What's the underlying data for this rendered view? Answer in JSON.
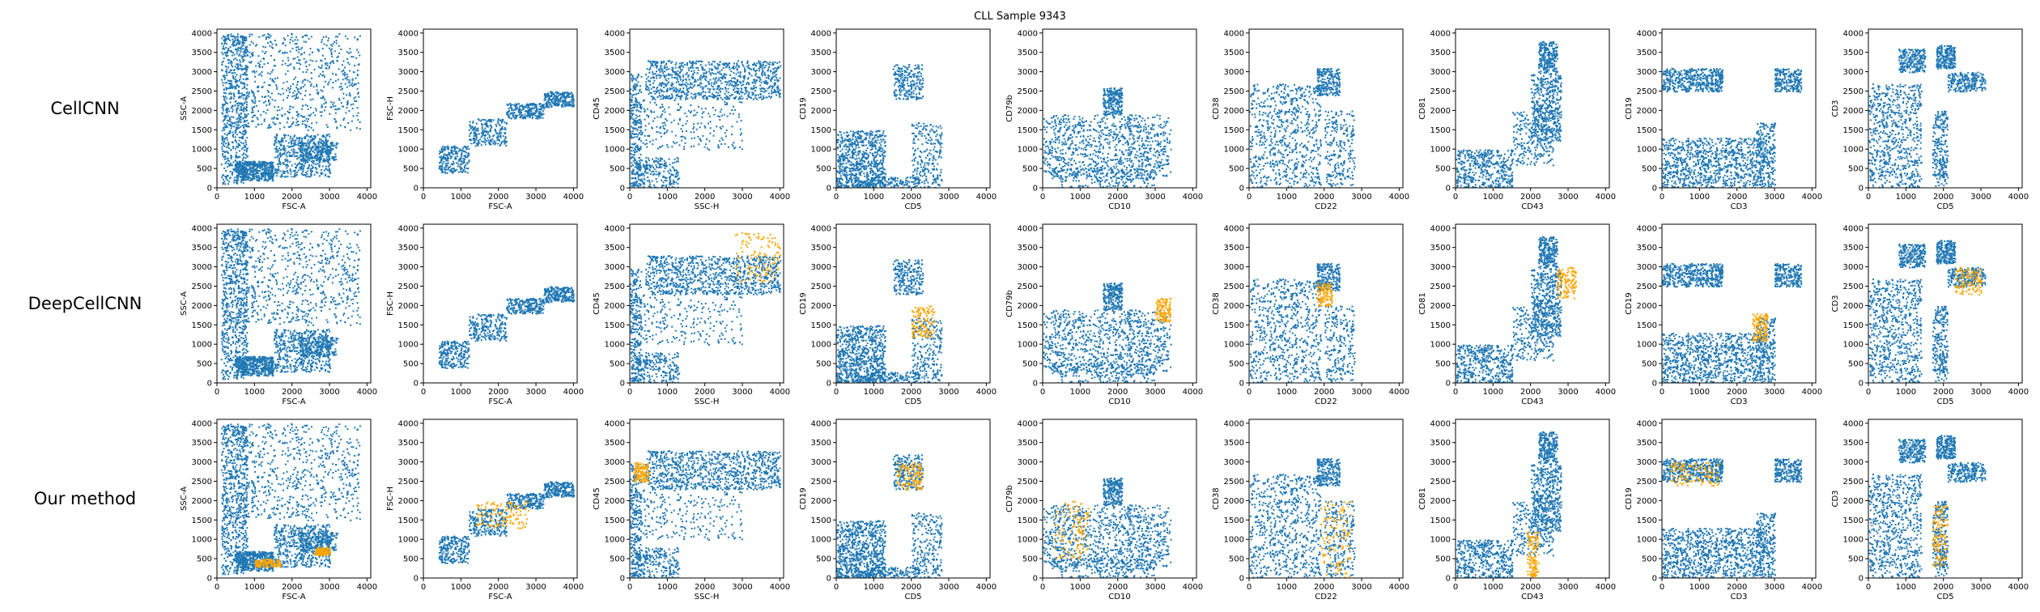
{
  "figure": {
    "title": "CLL Sample 9343",
    "row_labels": [
      "CellCNN",
      "DeepCellCNN",
      "Our method"
    ]
  },
  "colors": {
    "base_points": "#1f77b4",
    "highlight_points": "#ffa500",
    "axes": "#000000"
  },
  "chart_data": {
    "type": "scatter",
    "title": "CLL Sample 9343",
    "rows": [
      "CellCNN",
      "DeepCellCNN",
      "Our method"
    ],
    "panels": [
      {
        "xlabel": "FSC-A",
        "ylabel": "SSC-A",
        "xlim": [
          0,
          4100
        ],
        "ylim": [
          0,
          4100
        ]
      },
      {
        "xlabel": "FSC-A",
        "ylabel": "FSC-H",
        "xlim": [
          0,
          4100
        ],
        "ylim": [
          0,
          4100
        ]
      },
      {
        "xlabel": "SSC-H",
        "ylabel": "CD45",
        "xlim": [
          0,
          4100
        ],
        "ylim": [
          0,
          4100
        ]
      },
      {
        "xlabel": "CD5",
        "ylabel": "CD19",
        "xlim": [
          0,
          4100
        ],
        "ylim": [
          0,
          4100
        ]
      },
      {
        "xlabel": "CD10",
        "ylabel": "CD79b",
        "xlim": [
          0,
          4100
        ],
        "ylim": [
          0,
          4100
        ]
      },
      {
        "xlabel": "CD22",
        "ylabel": "CD38",
        "xlim": [
          0,
          4100
        ],
        "ylim": [
          0,
          4100
        ]
      },
      {
        "xlabel": "CD43",
        "ylabel": "CD81",
        "xlim": [
          0,
          4100
        ],
        "ylim": [
          0,
          4100
        ]
      },
      {
        "xlabel": "CD3",
        "ylabel": "CD19",
        "xlim": [
          0,
          4100
        ],
        "ylim": [
          0,
          4100
        ]
      },
      {
        "xlabel": "CD5",
        "ylabel": "CD3",
        "xlim": [
          0,
          4100
        ],
        "ylim": [
          0,
          4100
        ]
      }
    ],
    "xticks": [
      0,
      1000,
      2000,
      3000,
      4000
    ],
    "yticks": [
      0,
      500,
      1000,
      1500,
      2000,
      2500,
      3000,
      3500,
      4000
    ],
    "clusters": [
      [
        {
          "x": [
            100,
            800
          ],
          "y": [
            100,
            4000
          ],
          "w": 3
        },
        {
          "x": [
            500,
            3800
          ],
          "y": [
            1500,
            4000
          ],
          "w": 3
        },
        {
          "x": [
            1500,
            3000
          ],
          "y": [
            300,
            1400
          ],
          "w": 2
        },
        {
          "x": [
            500,
            1500
          ],
          "y": [
            200,
            700
          ],
          "w": 2
        },
        {
          "x": [
            2200,
            3200
          ],
          "y": [
            700,
            1200
          ],
          "w": 1
        }
      ],
      [
        {
          "x": [
            400,
            1200
          ],
          "y": [
            400,
            1100
          ],
          "w": 1
        },
        {
          "x": [
            1200,
            2200
          ],
          "y": [
            1100,
            1800
          ],
          "w": 1
        },
        {
          "x": [
            2200,
            3200
          ],
          "y": [
            1800,
            2200
          ],
          "w": 1
        },
        {
          "x": [
            3200,
            4000
          ],
          "y": [
            2100,
            2500
          ],
          "w": 1
        }
      ],
      [
        {
          "x": [
            400,
            4000
          ],
          "y": [
            2300,
            3300
          ],
          "w": 4
        },
        {
          "x": [
            0,
            1300
          ],
          "y": [
            0,
            800
          ],
          "w": 1
        },
        {
          "x": [
            100,
            3000
          ],
          "y": [
            1000,
            2300
          ],
          "w": 1
        },
        {
          "x": [
            0,
            300
          ],
          "y": [
            0,
            3000
          ],
          "w": 1
        }
      ],
      [
        {
          "x": [
            0,
            1300
          ],
          "y": [
            0,
            1500
          ],
          "w": 3
        },
        {
          "x": [
            1500,
            2300
          ],
          "y": [
            2300,
            3200
          ],
          "w": 1
        },
        {
          "x": [
            2000,
            2800
          ],
          "y": [
            0,
            1700
          ],
          "w": 1
        },
        {
          "x": [
            0,
            2200
          ],
          "y": [
            0,
            300
          ],
          "w": 1
        }
      ],
      [
        {
          "x": [
            0,
            3400
          ],
          "y": [
            300,
            1900
          ],
          "w": 4
        },
        {
          "x": [
            200,
            3000
          ],
          "y": [
            0,
            500
          ],
          "w": 1
        },
        {
          "x": [
            1600,
            2100
          ],
          "y": [
            1900,
            2600
          ],
          "w": 1
        }
      ],
      [
        {
          "x": [
            0,
            1900
          ],
          "y": [
            0,
            2700
          ],
          "w": 3
        },
        {
          "x": [
            2000,
            2800
          ],
          "y": [
            0,
            2000
          ],
          "w": 1
        },
        {
          "x": [
            1800,
            2400
          ],
          "y": [
            2400,
            3100
          ],
          "w": 1
        }
      ],
      [
        {
          "x": [
            0,
            1500
          ],
          "y": [
            0,
            1000
          ],
          "w": 2
        },
        {
          "x": [
            1500,
            2600
          ],
          "y": [
            600,
            2000
          ],
          "w": 1
        },
        {
          "x": [
            2000,
            2800
          ],
          "y": [
            1200,
            3000
          ],
          "w": 2
        },
        {
          "x": [
            2200,
            2700
          ],
          "y": [
            3000,
            3800
          ],
          "w": 1
        }
      ],
      [
        {
          "x": [
            0,
            2700
          ],
          "y": [
            0,
            1300
          ],
          "w": 4
        },
        {
          "x": [
            0,
            1600
          ],
          "y": [
            2500,
            3100
          ],
          "w": 2
        },
        {
          "x": [
            2500,
            3000
          ],
          "y": [
            0,
            1700
          ],
          "w": 1
        },
        {
          "x": [
            3000,
            3700
          ],
          "y": [
            2500,
            3100
          ],
          "w": 1
        }
      ],
      [
        {
          "x": [
            0,
            1400
          ],
          "y": [
            0,
            2700
          ],
          "w": 3
        },
        {
          "x": [
            1700,
            2100
          ],
          "y": [
            0,
            2000
          ],
          "w": 1
        },
        {
          "x": [
            2100,
            3100
          ],
          "y": [
            2500,
            3000
          ],
          "w": 1
        },
        {
          "x": [
            1800,
            2300
          ],
          "y": [
            3100,
            3700
          ],
          "w": 1
        },
        {
          "x": [
            800,
            1500
          ],
          "y": [
            3000,
            3600
          ],
          "w": 1
        }
      ]
    ],
    "highlights": [
      [
        [],
        [],
        [],
        [],
        [],
        [],
        [],
        [],
        []
      ],
      [
        [],
        [],
        [
          {
            "x": [
              2800,
              4000
            ],
            "y": [
              2600,
              3900
            ]
          }
        ],
        [
          {
            "x": [
              2000,
              2600
            ],
            "y": [
              1200,
              2000
            ]
          }
        ],
        [
          {
            "x": [
              3000,
              3400
            ],
            "y": [
              1600,
              2200
            ]
          }
        ],
        [
          {
            "x": [
              1800,
              2200
            ],
            "y": [
              2000,
              2600
            ]
          }
        ],
        [
          {
            "x": [
              2700,
              3200
            ],
            "y": [
              2200,
              3000
            ]
          }
        ],
        [
          {
            "x": [
              2400,
              2800
            ],
            "y": [
              1100,
              1800
            ]
          }
        ],
        [
          {
            "x": [
              2300,
              3000
            ],
            "y": [
              2300,
              3000
            ]
          }
        ]
      ],
      [
        [
          {
            "x": [
              1000,
              1700
            ],
            "y": [
              300,
              500
            ]
          },
          {
            "x": [
              2600,
              3000
            ],
            "y": [
              600,
              800
            ]
          }
        ],
        [
          {
            "x": [
              1400,
              2800
            ],
            "y": [
              1300,
              2000
            ]
          }
        ],
        [
          {
            "x": [
              100,
              500
            ],
            "y": [
              2500,
              3000
            ]
          }
        ],
        [
          {
            "x": [
              1600,
              2300
            ],
            "y": [
              2300,
              3000
            ]
          }
        ],
        [
          {
            "x": [
              300,
              1200
            ],
            "y": [
              500,
              2000
            ]
          }
        ],
        [
          {
            "x": [
              1900,
              2700
            ],
            "y": [
              0,
              2000
            ]
          }
        ],
        [
          {
            "x": [
              1900,
              2200
            ],
            "y": [
              0,
              1200
            ]
          }
        ],
        [
          {
            "x": [
              200,
              1500
            ],
            "y": [
              2400,
              3000
            ]
          }
        ],
        [
          {
            "x": [
              1700,
              2100
            ],
            "y": [
              300,
              1900
            ]
          }
        ]
      ]
    ]
  }
}
